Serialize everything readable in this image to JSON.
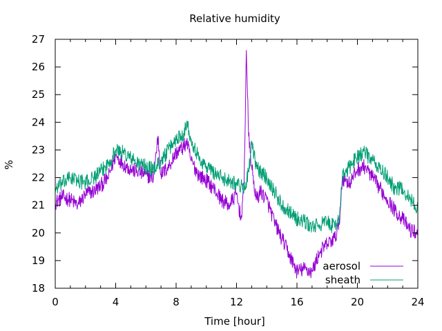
{
  "chart_data": {
    "type": "line",
    "title": "Relative humidity",
    "xlabel": "Time [hour]",
    "ylabel": "%",
    "xlim": [
      0,
      24
    ],
    "ylim": [
      18,
      27
    ],
    "xticks": [
      0,
      4,
      8,
      12,
      16,
      20,
      24
    ],
    "yticks": [
      18,
      19,
      20,
      21,
      22,
      23,
      24,
      25,
      26,
      27
    ],
    "grid": false,
    "legend_position": "bottom-right",
    "series": [
      {
        "name": "aerosol",
        "color": "#9400d3",
        "x": [
          0,
          0.5,
          1,
          1.5,
          2,
          2.5,
          3,
          3.5,
          4,
          4.5,
          5,
          5.5,
          6,
          6.5,
          6.8,
          7,
          7.5,
          8,
          8.5,
          8.7,
          9,
          9.5,
          10,
          10.5,
          11,
          11.5,
          12,
          12.3,
          12.5,
          12.65,
          12.8,
          13,
          13.3,
          13.6,
          14,
          14.5,
          15,
          15.5,
          16,
          16.5,
          17,
          17.5,
          18,
          18.5,
          18.8,
          19,
          19.5,
          20,
          20.5,
          21,
          21.5,
          22,
          22.5,
          23,
          23.5,
          24
        ],
        "values": [
          21.1,
          21.3,
          21.2,
          21.0,
          21.4,
          21.5,
          21.7,
          22.0,
          22.8,
          22.5,
          22.3,
          22.2,
          22.1,
          22.0,
          23.5,
          22.1,
          22.4,
          22.9,
          23.1,
          23.3,
          22.6,
          22.1,
          21.9,
          21.6,
          21.2,
          21.0,
          21.4,
          20.5,
          21.8,
          26.6,
          23.5,
          22.4,
          21.2,
          21.5,
          21.2,
          20.4,
          19.8,
          19.2,
          18.6,
          18.7,
          18.6,
          19.3,
          19.6,
          19.8,
          20.3,
          22.0,
          21.8,
          22.3,
          22.4,
          22.0,
          21.6,
          21.2,
          20.8,
          20.5,
          20.1,
          20.0
        ]
      },
      {
        "name": "sheath",
        "color": "#009e73",
        "x": [
          0,
          0.5,
          1,
          1.5,
          2,
          2.5,
          3,
          3.5,
          4,
          4.5,
          5,
          5.5,
          6,
          6.5,
          7,
          7.5,
          8,
          8.5,
          8.7,
          9,
          9.5,
          10,
          10.5,
          11,
          11.5,
          12,
          12.5,
          12.8,
          13,
          13.3,
          13.6,
          14,
          14.5,
          15,
          15.5,
          16,
          16.5,
          17,
          17.5,
          18,
          18.5,
          18.8,
          19,
          19.5,
          20,
          20.5,
          21,
          21.5,
          22,
          22.5,
          23,
          23.5,
          24
        ],
        "values": [
          21.6,
          21.8,
          22.0,
          21.9,
          21.8,
          22.0,
          22.2,
          22.5,
          23.0,
          22.9,
          22.7,
          22.5,
          22.4,
          22.3,
          22.6,
          23.0,
          23.4,
          23.6,
          24.0,
          23.4,
          22.7,
          22.4,
          22.2,
          22.0,
          21.9,
          21.8,
          21.6,
          22.2,
          23.2,
          22.4,
          22.2,
          22.0,
          21.5,
          21.0,
          20.8,
          20.5,
          20.4,
          20.2,
          20.3,
          20.4,
          20.2,
          20.6,
          22.0,
          22.4,
          22.8,
          22.9,
          22.6,
          22.3,
          22.0,
          21.6,
          21.6,
          21.2,
          20.9
        ]
      }
    ]
  }
}
